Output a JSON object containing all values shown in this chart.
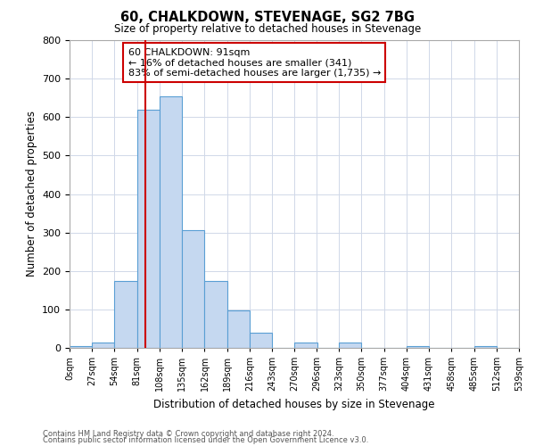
{
  "title": "60, CHALKDOWN, STEVENAGE, SG2 7BG",
  "subtitle": "Size of property relative to detached houses in Stevenage",
  "xlabel": "Distribution of detached houses by size in Stevenage",
  "ylabel": "Number of detached properties",
  "bar_color": "#c5d8f0",
  "bar_edge_color": "#5a9fd4",
  "bin_edges": [
    0,
    27,
    54,
    81,
    108,
    135,
    162,
    189,
    216,
    243,
    270,
    296,
    323,
    350,
    377,
    404,
    431,
    458,
    485,
    512,
    539
  ],
  "bar_heights": [
    5,
    13,
    175,
    620,
    655,
    305,
    175,
    97,
    40,
    0,
    13,
    0,
    13,
    0,
    0,
    5,
    0,
    0,
    5,
    0
  ],
  "vline_x": 91,
  "vline_color": "#cc0000",
  "annotation_title": "60 CHALKDOWN: 91sqm",
  "annotation_line1": "← 16% of detached houses are smaller (341)",
  "annotation_line2": "83% of semi-detached houses are larger (1,735) →",
  "box_color": "#ffffff",
  "box_edge_color": "#cc0000",
  "ylim": [
    0,
    800
  ],
  "yticks": [
    0,
    100,
    200,
    300,
    400,
    500,
    600,
    700,
    800
  ],
  "tick_labels": [
    "0sqm",
    "27sqm",
    "54sqm",
    "81sqm",
    "108sqm",
    "135sqm",
    "162sqm",
    "189sqm",
    "216sqm",
    "243sqm",
    "270sqm",
    "296sqm",
    "323sqm",
    "350sqm",
    "377sqm",
    "404sqm",
    "431sqm",
    "458sqm",
    "485sqm",
    "512sqm",
    "539sqm"
  ],
  "footnote1": "Contains HM Land Registry data © Crown copyright and database right 2024.",
  "footnote2": "Contains public sector information licensed under the Open Government Licence v3.0.",
  "bg_color": "#ffffff",
  "grid_color": "#d0d8e8"
}
